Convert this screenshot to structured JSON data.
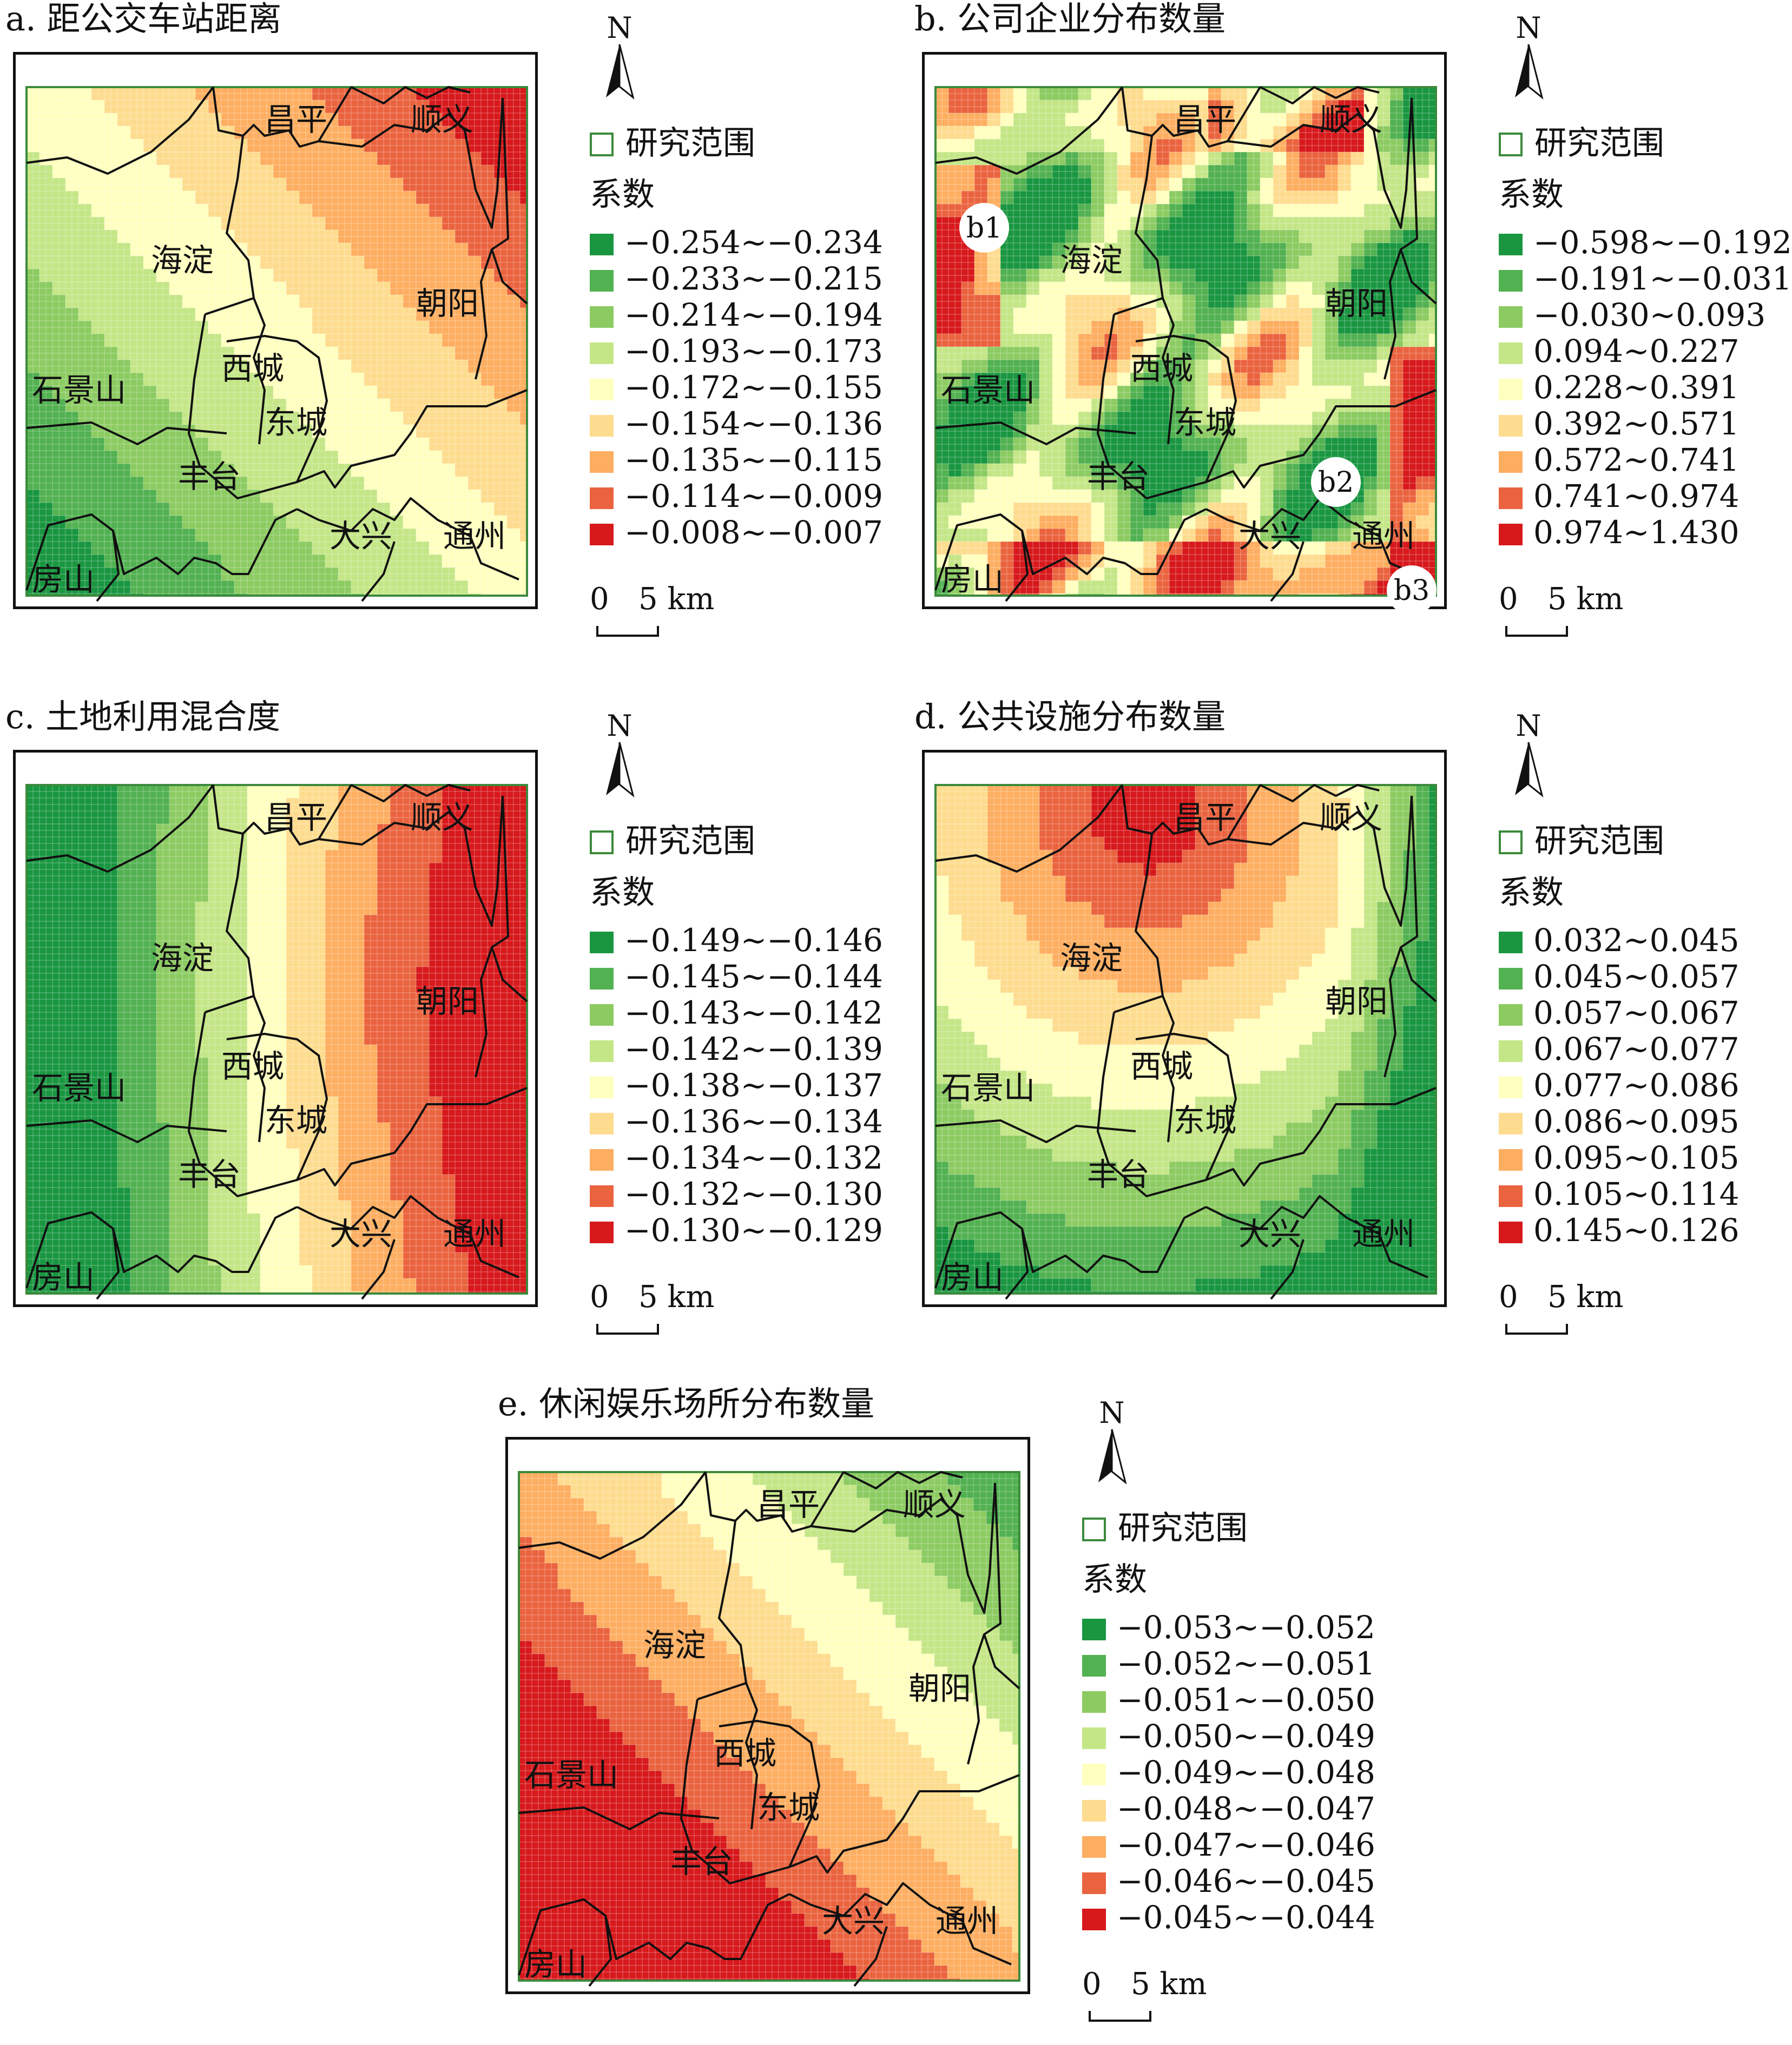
{
  "panels": [
    {
      "id": "a",
      "title": "a. 距公交车站距离",
      "colors": [
        "#1a9641",
        "#52b151",
        "#8ccb62",
        "#c4e687",
        "#ffffc0",
        "#fedc8f",
        "#fdae61",
        "#ea633f",
        "#d7191c"
      ],
      "pattern": "nw-se",
      "legend": [
        "−0.254~−0.234",
        "−0.233~−0.215",
        "−0.214~−0.194",
        "−0.193~−0.173",
        "−0.172~−0.155",
        "−0.154~−0.136",
        "−0.135~−0.115",
        "−0.114~−0.009",
        "−0.008~−0.007"
      ],
      "markers": []
    },
    {
      "id": "b",
      "title": "b. 公司企业分布数量",
      "colors": [
        "#1a9641",
        "#52b151",
        "#8ccb62",
        "#c4e687",
        "#ffffc0",
        "#fedc8f",
        "#fdae61",
        "#ea633f",
        "#d7191c"
      ],
      "pattern": "patchy",
      "legend": [
        "−0.598~−0.192",
        "−0.191~−0.031",
        "−0.030~0.093",
        "0.094~0.227",
        "0.228~0.391",
        "0.392~0.571",
        "0.572~0.741",
        "0.741~0.974",
        "0.974~1.430"
      ],
      "markers": [
        "b1",
        "b2",
        "b3"
      ]
    },
    {
      "id": "c",
      "title": "c. 土地利用混合度",
      "colors": [
        "#1a9641",
        "#52b151",
        "#8ccb62",
        "#c4e687",
        "#ffffc0",
        "#fedc8f",
        "#fdae61",
        "#ea633f",
        "#d7191c"
      ],
      "pattern": "west-east",
      "legend": [
        "−0.149~−0.146",
        "−0.145~−0.144",
        "−0.143~−0.142",
        "−0.142~−0.139",
        "−0.138~−0.137",
        "−0.136~−0.134",
        "−0.134~−0.132",
        "−0.132~−0.130",
        "−0.130~−0.129"
      ],
      "markers": []
    },
    {
      "id": "d",
      "title": "d. 公共设施分布数量",
      "colors": [
        "#1a9641",
        "#52b151",
        "#8ccb62",
        "#c4e687",
        "#ffffc0",
        "#fedc8f",
        "#fdae61",
        "#ea633f",
        "#d7191c"
      ],
      "pattern": "north-center",
      "legend": [
        "0.032~0.045",
        "0.045~0.057",
        "0.057~0.067",
        "0.067~0.077",
        "0.077~0.086",
        "0.086~0.095",
        "0.095~0.105",
        "0.105~0.114",
        "0.145~0.126"
      ],
      "markers": []
    },
    {
      "id": "e",
      "title": "e. 休闲娱乐场所分布数量",
      "colors": [
        "#1a9641",
        "#52b151",
        "#8ccb62",
        "#c4e687",
        "#ffffc0",
        "#fedc8f",
        "#fdae61",
        "#ea633f",
        "#d7191c"
      ],
      "pattern": "sw-ne",
      "legend": [
        "−0.053~−0.052",
        "−0.052~−0.051",
        "−0.051~−0.050",
        "−0.050~−0.049",
        "−0.049~−0.048",
        "−0.048~−0.047",
        "−0.047~−0.046",
        "−0.046~−0.045",
        "−0.045~−0.044"
      ],
      "markers": []
    }
  ],
  "districts": [
    "昌平",
    "顺义",
    "海淀",
    "朝阳",
    "西城",
    "石景山",
    "东城",
    "丰台",
    "大兴",
    "通州",
    "房山"
  ],
  "legend_common": {
    "north": "N",
    "study_area": "研究范围",
    "coef_title": "系数",
    "scale_zero": "0",
    "scale_label": "5 km"
  }
}
